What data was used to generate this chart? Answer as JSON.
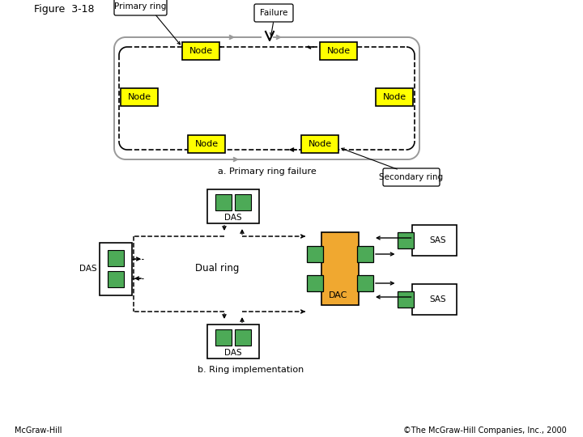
{
  "title": "Figure  3-18",
  "bg_color": "#ffffff",
  "node_color": "#ffff00",
  "node_border": "#000000",
  "green_color": "#4daa57",
  "orange_color": "#f0a830",
  "caption_a": "a. Primary ring failure",
  "caption_b": "b. Ring implementation",
  "footer_left": "McGraw-Hill",
  "footer_right": "©The McGraw-Hill Companies, Inc., 2000"
}
